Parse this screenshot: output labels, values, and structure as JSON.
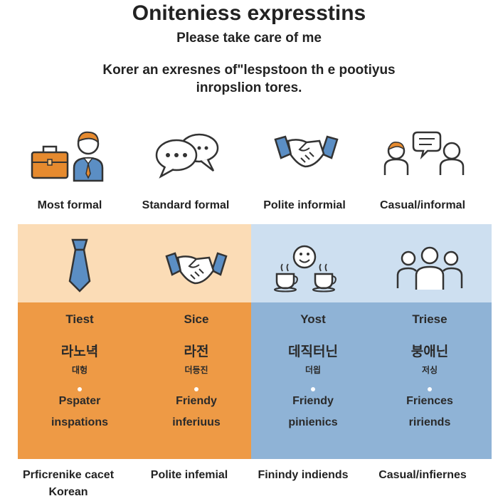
{
  "header": {
    "title": "Oniteniess expresstins",
    "subtitle": "Please take care of me",
    "intro_line1": "Korer an exresnes of\"lespstoon th e pootiyus",
    "intro_line2": "inropslion tores."
  },
  "levels": [
    {
      "label": "Most formal",
      "top_icon": "businessperson-briefcase-icon",
      "card_icon": "necktie-icon",
      "heading": "Tiest",
      "korean": "라노녁",
      "korean_small": "대헝",
      "line1": "Pspater",
      "line2": "inspations",
      "bottom": "Prficrenike cacet Korean",
      "colors": {
        "head": "#fbdcb6",
        "body": "#ee9a45"
      }
    },
    {
      "label": "Standard formal",
      "top_icon": "speech-bubbles-icon",
      "card_icon": "handshake-icon",
      "heading": "Sice",
      "korean": "라전",
      "korean_small": "더등진",
      "line1": "Friendy",
      "line2": "inferiuus",
      "bottom": "Polite infemial",
      "colors": {
        "head": "#fbdcb6",
        "body": "#ee9a45"
      }
    },
    {
      "label": "Polite informial",
      "top_icon": "handshake-icon",
      "card_icon": "coffee-smiley-icon",
      "heading": "Yost",
      "korean": "데직터닌",
      "korean_small": "더읩",
      "line1": "Friendy",
      "line2": "pinienics",
      "bottom": "Finindy indiends",
      "colors": {
        "head": "#cddff0",
        "body": "#8fb3d6"
      }
    },
    {
      "label": "Casual/informal",
      "top_icon": "two-people-chat-icon",
      "card_icon": "group-people-icon",
      "heading": "Triese",
      "korean": "붕애닌",
      "korean_small": "저싱",
      "line1": "Friences",
      "line2": "ririends",
      "bottom": "Casual/infiernes",
      "colors": {
        "head": "#cddff0",
        "body": "#8fb3d6"
      }
    }
  ]
}
